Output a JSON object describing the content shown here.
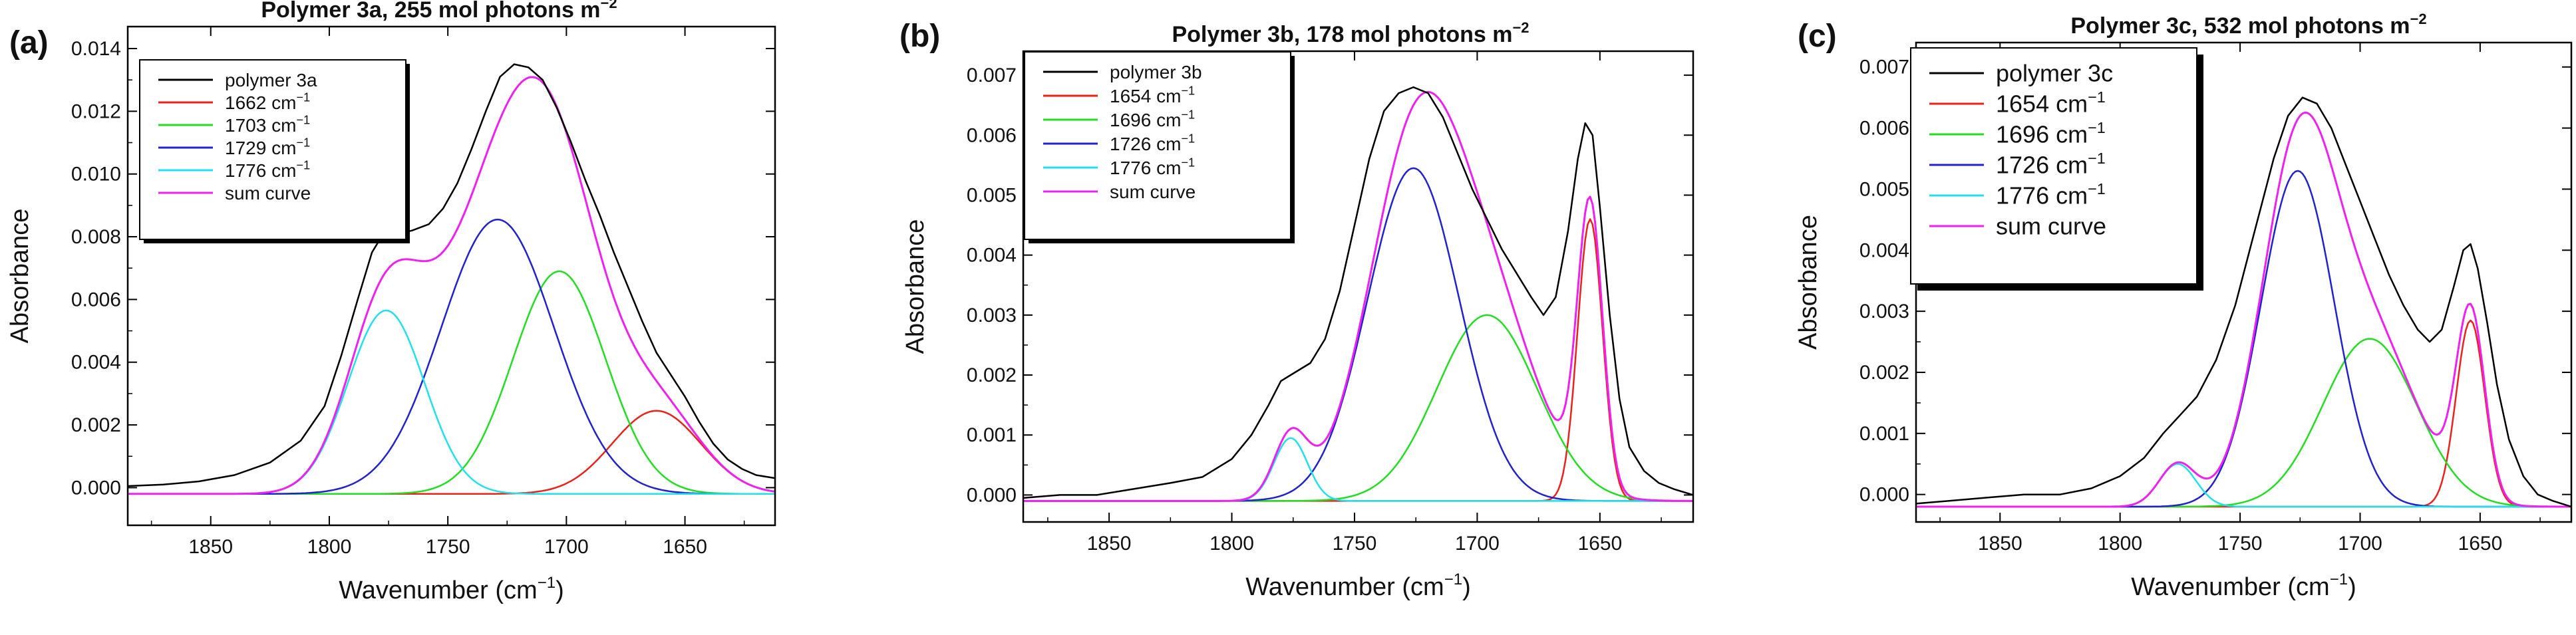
{
  "chart_data": [
    {
      "type": "line",
      "panel_label": "(a)",
      "title_main": "Polymer 3a, 255 mol photons m",
      "title_sup": "−2",
      "xlabel_main": "Wavenumber (cm",
      "xlabel_sup": "−1",
      "xlabel_end": ")",
      "ylabel": "Absorbance",
      "xlim": [
        1885,
        1612
      ],
      "ylim": [
        -0.0012,
        0.0147
      ],
      "xticks": [
        1850,
        1800,
        1750,
        1700,
        1650
      ],
      "yticks": [
        0.0,
        0.002,
        0.004,
        0.006,
        0.008,
        0.01,
        0.012,
        0.014
      ],
      "ytick_labels": [
        "0.000",
        "0.002",
        "0.004",
        "0.006",
        "0.008",
        "0.010",
        "0.012",
        "0.014"
      ],
      "baseline": -0.0002,
      "series": [
        {
          "name": "polymer 3a",
          "label_main": "polymer 3a",
          "label_sup": "",
          "color": "#000000",
          "kind": "measured",
          "x": [
            1885,
            1870,
            1855,
            1840,
            1825,
            1812,
            1802,
            1795,
            1788,
            1782,
            1778,
            1774,
            1770,
            1765,
            1758,
            1752,
            1746,
            1740,
            1734,
            1728,
            1722,
            1716,
            1710,
            1704,
            1698,
            1692,
            1686,
            1680,
            1674,
            1668,
            1662,
            1656,
            1650,
            1644,
            1638,
            1632,
            1626,
            1620,
            1612
          ],
          "y": [
            5e-05,
            0.0001,
            0.0002,
            0.0004,
            0.0008,
            0.0015,
            0.0026,
            0.0042,
            0.006,
            0.0075,
            0.008,
            0.0081,
            0.0081,
            0.0082,
            0.0084,
            0.0089,
            0.0097,
            0.0108,
            0.012,
            0.0131,
            0.0135,
            0.0134,
            0.013,
            0.0121,
            0.011,
            0.0098,
            0.0087,
            0.0075,
            0.0064,
            0.0053,
            0.0043,
            0.0036,
            0.0029,
            0.0021,
            0.0014,
            0.0009,
            0.0006,
            0.0004,
            0.0003
          ]
        },
        {
          "name": "1662 cm-1",
          "label_main": "1662 cm",
          "label_sup": "−1",
          "color": "#e8231c",
          "kind": "peak",
          "center": 1662,
          "height": 0.00265,
          "width": 44
        },
        {
          "name": "1703 cm-1",
          "label_main": "1703 cm",
          "label_sup": "−1",
          "color": "#22dd22",
          "kind": "peak",
          "center": 1703,
          "height": 0.0071,
          "width": 46
        },
        {
          "name": "1729 cm-1",
          "label_main": "1729 cm",
          "label_sup": "−1",
          "color": "#2222cc",
          "kind": "peak",
          "center": 1729,
          "height": 0.00875,
          "width": 56
        },
        {
          "name": "1776 cm-1",
          "label_main": "1776 cm",
          "label_sup": "−1",
          "color": "#22e0e8",
          "kind": "peak",
          "center": 1776,
          "height": 0.00585,
          "width": 38
        },
        {
          "name": "sum curve",
          "label_main": "sum curve",
          "label_sup": "",
          "color": "#ee22ee",
          "kind": "sum"
        }
      ]
    },
    {
      "type": "line",
      "panel_label": "(b)",
      "title_main": "Polymer 3b, 178 mol photons m",
      "title_sup": "−2",
      "xlabel_main": "Wavenumber (cm",
      "xlabel_sup": "−1",
      "xlabel_end": ")",
      "ylabel": "Absorbance",
      "xlim": [
        1885,
        1612
      ],
      "ylim": [
        -0.00045,
        0.0074
      ],
      "xticks": [
        1850,
        1800,
        1750,
        1700,
        1650
      ],
      "yticks": [
        0.0,
        0.001,
        0.002,
        0.003,
        0.004,
        0.005,
        0.006,
        0.007
      ],
      "ytick_labels": [
        "0.000",
        "0.001",
        "0.002",
        "0.003",
        "0.004",
        "0.005",
        "0.006",
        "0.007"
      ],
      "baseline": -0.0001,
      "series": [
        {
          "name": "polymer 3b",
          "label_main": "polymer 3b",
          "label_sup": "",
          "color": "#000000",
          "kind": "measured",
          "x": [
            1885,
            1870,
            1855,
            1840,
            1825,
            1812,
            1800,
            1792,
            1785,
            1780,
            1776,
            1772,
            1768,
            1762,
            1756,
            1750,
            1744,
            1738,
            1732,
            1726,
            1720,
            1714,
            1708,
            1702,
            1696,
            1690,
            1684,
            1678,
            1673,
            1668,
            1663,
            1659,
            1656,
            1653,
            1650,
            1646,
            1642,
            1638,
            1632,
            1626,
            1620,
            1612
          ],
          "y": [
            -5e-05,
            0.0,
            0.0,
            0.0001,
            0.0002,
            0.0003,
            0.0006,
            0.001,
            0.0015,
            0.0019,
            0.002,
            0.0021,
            0.0022,
            0.0026,
            0.0034,
            0.0045,
            0.0056,
            0.0064,
            0.0067,
            0.0068,
            0.0067,
            0.0063,
            0.0057,
            0.0051,
            0.0046,
            0.0041,
            0.0037,
            0.0033,
            0.003,
            0.0033,
            0.0044,
            0.0056,
            0.0062,
            0.006,
            0.0048,
            0.003,
            0.0016,
            0.0008,
            0.0004,
            0.0002,
            0.0001,
            0.0
          ]
        },
        {
          "name": "1654 cm-1",
          "label_main": "1654 cm",
          "label_sup": "−1",
          "color": "#e8231c",
          "kind": "peak",
          "center": 1654,
          "height": 0.0047,
          "width": 12
        },
        {
          "name": "1696 cm-1",
          "label_main": "1696 cm",
          "label_sup": "−1",
          "color": "#22dd22",
          "kind": "peak",
          "center": 1696,
          "height": 0.0031,
          "width": 48
        },
        {
          "name": "1726 cm-1",
          "label_main": "1726 cm",
          "label_sup": "−1",
          "color": "#2222cc",
          "kind": "peak",
          "center": 1726,
          "height": 0.00555,
          "width": 44
        },
        {
          "name": "1776 cm-1",
          "label_main": "1776 cm",
          "label_sup": "−1",
          "color": "#22e0e8",
          "kind": "peak",
          "center": 1776,
          "height": 0.00105,
          "width": 16
        },
        {
          "name": "sum curve",
          "label_main": "sum curve",
          "label_sup": "",
          "color": "#ee22ee",
          "kind": "sum"
        }
      ]
    },
    {
      "type": "line",
      "panel_label": "(c)",
      "title_main": "Polymer 3c, 532 mol photons m",
      "title_sup": "−2",
      "xlabel_main": "Wavenumber (cm",
      "xlabel_sup": "−1",
      "xlabel_end": ")",
      "ylabel": "Absorbance",
      "xlim": [
        1885,
        1612
      ],
      "ylim": [
        -0.00045,
        0.0074
      ],
      "xticks": [
        1850,
        1800,
        1750,
        1700,
        1650
      ],
      "yticks": [
        0.0,
        0.001,
        0.002,
        0.003,
        0.004,
        0.005,
        0.006,
        0.007
      ],
      "ytick_labels": [
        "0.000",
        "0.001",
        "0.002",
        "0.003",
        "0.004",
        "0.005",
        "0.006",
        "0.007"
      ],
      "baseline": -0.0002,
      "series": [
        {
          "name": "polymer 3c",
          "label_main": "polymer 3c",
          "label_sup": "",
          "color": "#000000",
          "kind": "measured",
          "x": [
            1885,
            1870,
            1855,
            1840,
            1825,
            1812,
            1800,
            1790,
            1782,
            1775,
            1768,
            1760,
            1752,
            1744,
            1736,
            1730,
            1724,
            1718,
            1712,
            1706,
            1700,
            1694,
            1688,
            1682,
            1676,
            1671,
            1666,
            1661,
            1657,
            1654,
            1651,
            1647,
            1643,
            1638,
            1632,
            1626,
            1620,
            1612
          ],
          "y": [
            -0.00015,
            -0.0001,
            -5e-05,
            0.0,
            0.0,
            0.0001,
            0.0003,
            0.0006,
            0.001,
            0.0013,
            0.0016,
            0.0022,
            0.0031,
            0.0043,
            0.0055,
            0.0062,
            0.0065,
            0.0064,
            0.006,
            0.0054,
            0.0048,
            0.0042,
            0.0036,
            0.0031,
            0.0027,
            0.0025,
            0.0027,
            0.0034,
            0.004,
            0.0041,
            0.0037,
            0.0028,
            0.0018,
            0.0009,
            0.0003,
            0.0,
            -0.0001,
            -0.0002
          ]
        },
        {
          "name": "1654 cm-1",
          "label_main": "1654 cm",
          "label_sup": "−1",
          "color": "#e8231c",
          "kind": "peak",
          "center": 1654,
          "height": 0.00305,
          "width": 14
        },
        {
          "name": "1696 cm-1",
          "label_main": "1696 cm",
          "label_sup": "−1",
          "color": "#22dd22",
          "kind": "peak",
          "center": 1696,
          "height": 0.00275,
          "width": 46
        },
        {
          "name": "1726 cm-1",
          "label_main": "1726 cm",
          "label_sup": "−1",
          "color": "#2222cc",
          "kind": "peak",
          "center": 1726,
          "height": 0.0055,
          "width": 36
        },
        {
          "name": "1776 cm-1",
          "label_main": "1776 cm",
          "label_sup": "−1",
          "color": "#22e0e8",
          "kind": "peak",
          "center": 1776,
          "height": 0.0007,
          "width": 18
        },
        {
          "name": "sum curve",
          "label_main": "sum curve",
          "label_sup": "",
          "color": "#ee22ee",
          "kind": "sum"
        }
      ]
    }
  ]
}
